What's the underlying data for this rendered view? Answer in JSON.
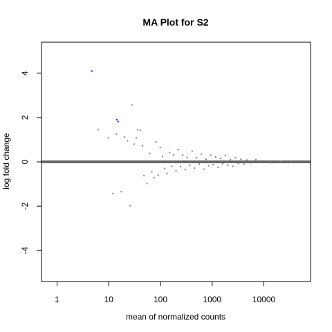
{
  "chart_data": {
    "type": "scatter",
    "title": "MA Plot for S2",
    "xlabel": "mean of normalized counts",
    "ylabel": "log fold change",
    "x_scale": "log",
    "xlim": [
      0.5,
      80000
    ],
    "ylim": [
      -5.4,
      5.4
    ],
    "x_ticks": [
      1,
      10,
      100,
      1000,
      10000
    ],
    "x_tick_labels": [
      "1",
      "10",
      "100",
      "1000",
      "10000"
    ],
    "y_ticks": [
      -4,
      -2,
      0,
      2,
      4
    ],
    "y_tick_labels": [
      "-4",
      "-2",
      "0",
      "2",
      "4"
    ],
    "grid": false,
    "colors": {
      "points": "#808080",
      "significant": "#0000ff",
      "zero_line": "#666666"
    },
    "series": [
      {
        "points": [
          [
            6.2,
            1.45
          ],
          [
            9.8,
            1.08
          ],
          [
            12,
            -1.43
          ],
          [
            14,
            1.25
          ],
          [
            17.5,
            -1.35
          ],
          [
            20,
            1.12
          ],
          [
            23,
            0.95
          ],
          [
            26,
            -1.98
          ],
          [
            28,
            2.57
          ],
          [
            31,
            0.8
          ],
          [
            34,
            1.08
          ],
          [
            36,
            1.45
          ],
          [
            41,
            1.42
          ],
          [
            45,
            0.72
          ],
          [
            48,
            -0.62
          ],
          [
            55,
            -0.98
          ],
          [
            62,
            0.38
          ],
          [
            68,
            -0.45
          ],
          [
            75,
            -0.72
          ],
          [
            82,
            0.9
          ],
          [
            90,
            -0.6
          ],
          [
            99,
            0.65
          ],
          [
            110,
            0.25
          ],
          [
            120,
            -0.3
          ],
          [
            133,
            -0.52
          ],
          [
            150,
            0.42
          ],
          [
            165,
            -0.2
          ],
          [
            180,
            0.32
          ],
          [
            200,
            -0.4
          ],
          [
            220,
            0.55
          ],
          [
            245,
            -0.22
          ],
          [
            270,
            0.3
          ],
          [
            300,
            -0.35
          ],
          [
            330,
            0.2
          ],
          [
            370,
            -0.15
          ],
          [
            410,
            0.48
          ],
          [
            455,
            -0.28
          ],
          [
            500,
            0.18
          ],
          [
            560,
            -0.1
          ],
          [
            620,
            0.35
          ],
          [
            690,
            -0.33
          ],
          [
            760,
            0.12
          ],
          [
            850,
            -0.18
          ],
          [
            940,
            0.3
          ],
          [
            1050,
            -0.12
          ],
          [
            1170,
            0.22
          ],
          [
            1300,
            -0.25
          ],
          [
            1450,
            0.15
          ],
          [
            1600,
            -0.08
          ],
          [
            1800,
            0.28
          ],
          [
            2000,
            -0.15
          ],
          [
            2250,
            0.1
          ],
          [
            2500,
            -0.2
          ],
          [
            2800,
            0.18
          ],
          [
            3200,
            -0.08
          ],
          [
            3600,
            0.12
          ],
          [
            4100,
            -0.1
          ],
          [
            4700,
            0.08
          ],
          [
            5600,
            -0.05
          ],
          [
            7000,
            0.1
          ],
          [
            10000,
            0.05
          ],
          [
            14000,
            -0.04
          ],
          [
            21000,
            0.03
          ],
          [
            33000,
            -0.02
          ]
        ]
      },
      {
        "name": "",
        "points": [
          [
            4.7,
            4.1
          ],
          [
            14.2,
            1.9
          ],
          [
            15.2,
            1.82
          ]
        ]
      }
    ]
  }
}
